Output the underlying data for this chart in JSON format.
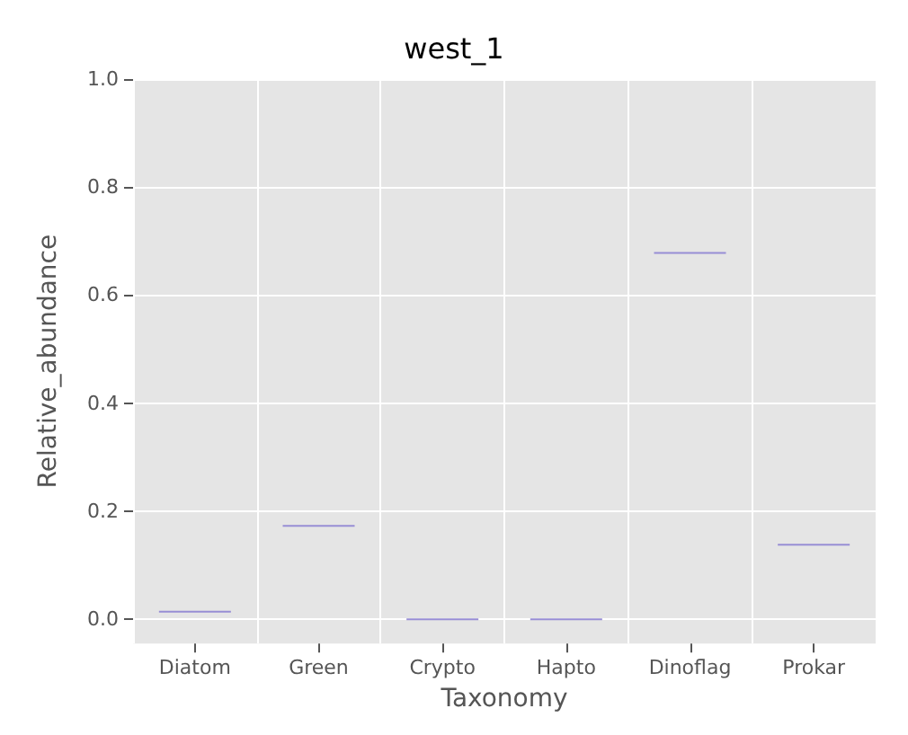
{
  "chart_data": {
    "type": "box",
    "title": "west_1",
    "xlabel": "Taxonomy",
    "ylabel": "Relative_abundance",
    "categories": [
      "Diatom",
      "Green",
      "Crypto",
      "Hapto",
      "Dinoflag",
      "Prokar"
    ],
    "series": [
      {
        "color": "#988ed5",
        "boxes": [
          {
            "low": 0.014,
            "q1": 0.014,
            "median": 0.014,
            "q3": 0.014,
            "high": 0.014
          },
          {
            "low": 0.173,
            "q1": 0.173,
            "median": 0.173,
            "q3": 0.173,
            "high": 0.173
          },
          {
            "low": 0,
            "q1": 0,
            "median": 0,
            "q3": 0,
            "high": 0
          },
          {
            "low": 0,
            "q1": 0,
            "median": 0,
            "q3": 0,
            "high": 0
          },
          {
            "low": 0.678,
            "q1": 0.678,
            "median": 0.678,
            "q3": 0.678,
            "high": 0.678
          },
          {
            "low": 0.138,
            "q1": 0.138,
            "median": 0.138,
            "q3": 0.138,
            "high": 0.138
          }
        ]
      }
    ],
    "ylim": [
      -0.045,
      1.0
    ],
    "yticks": [
      {
        "value": 0,
        "label": "0.0"
      },
      {
        "value": 0.2,
        "label": "0.2"
      },
      {
        "value": 0.4,
        "label": "0.4"
      },
      {
        "value": 0.6,
        "label": "0.6"
      },
      {
        "value": 0.8,
        "label": "0.8"
      },
      {
        "value": 1,
        "label": "1.0"
      }
    ],
    "grid": true
  }
}
